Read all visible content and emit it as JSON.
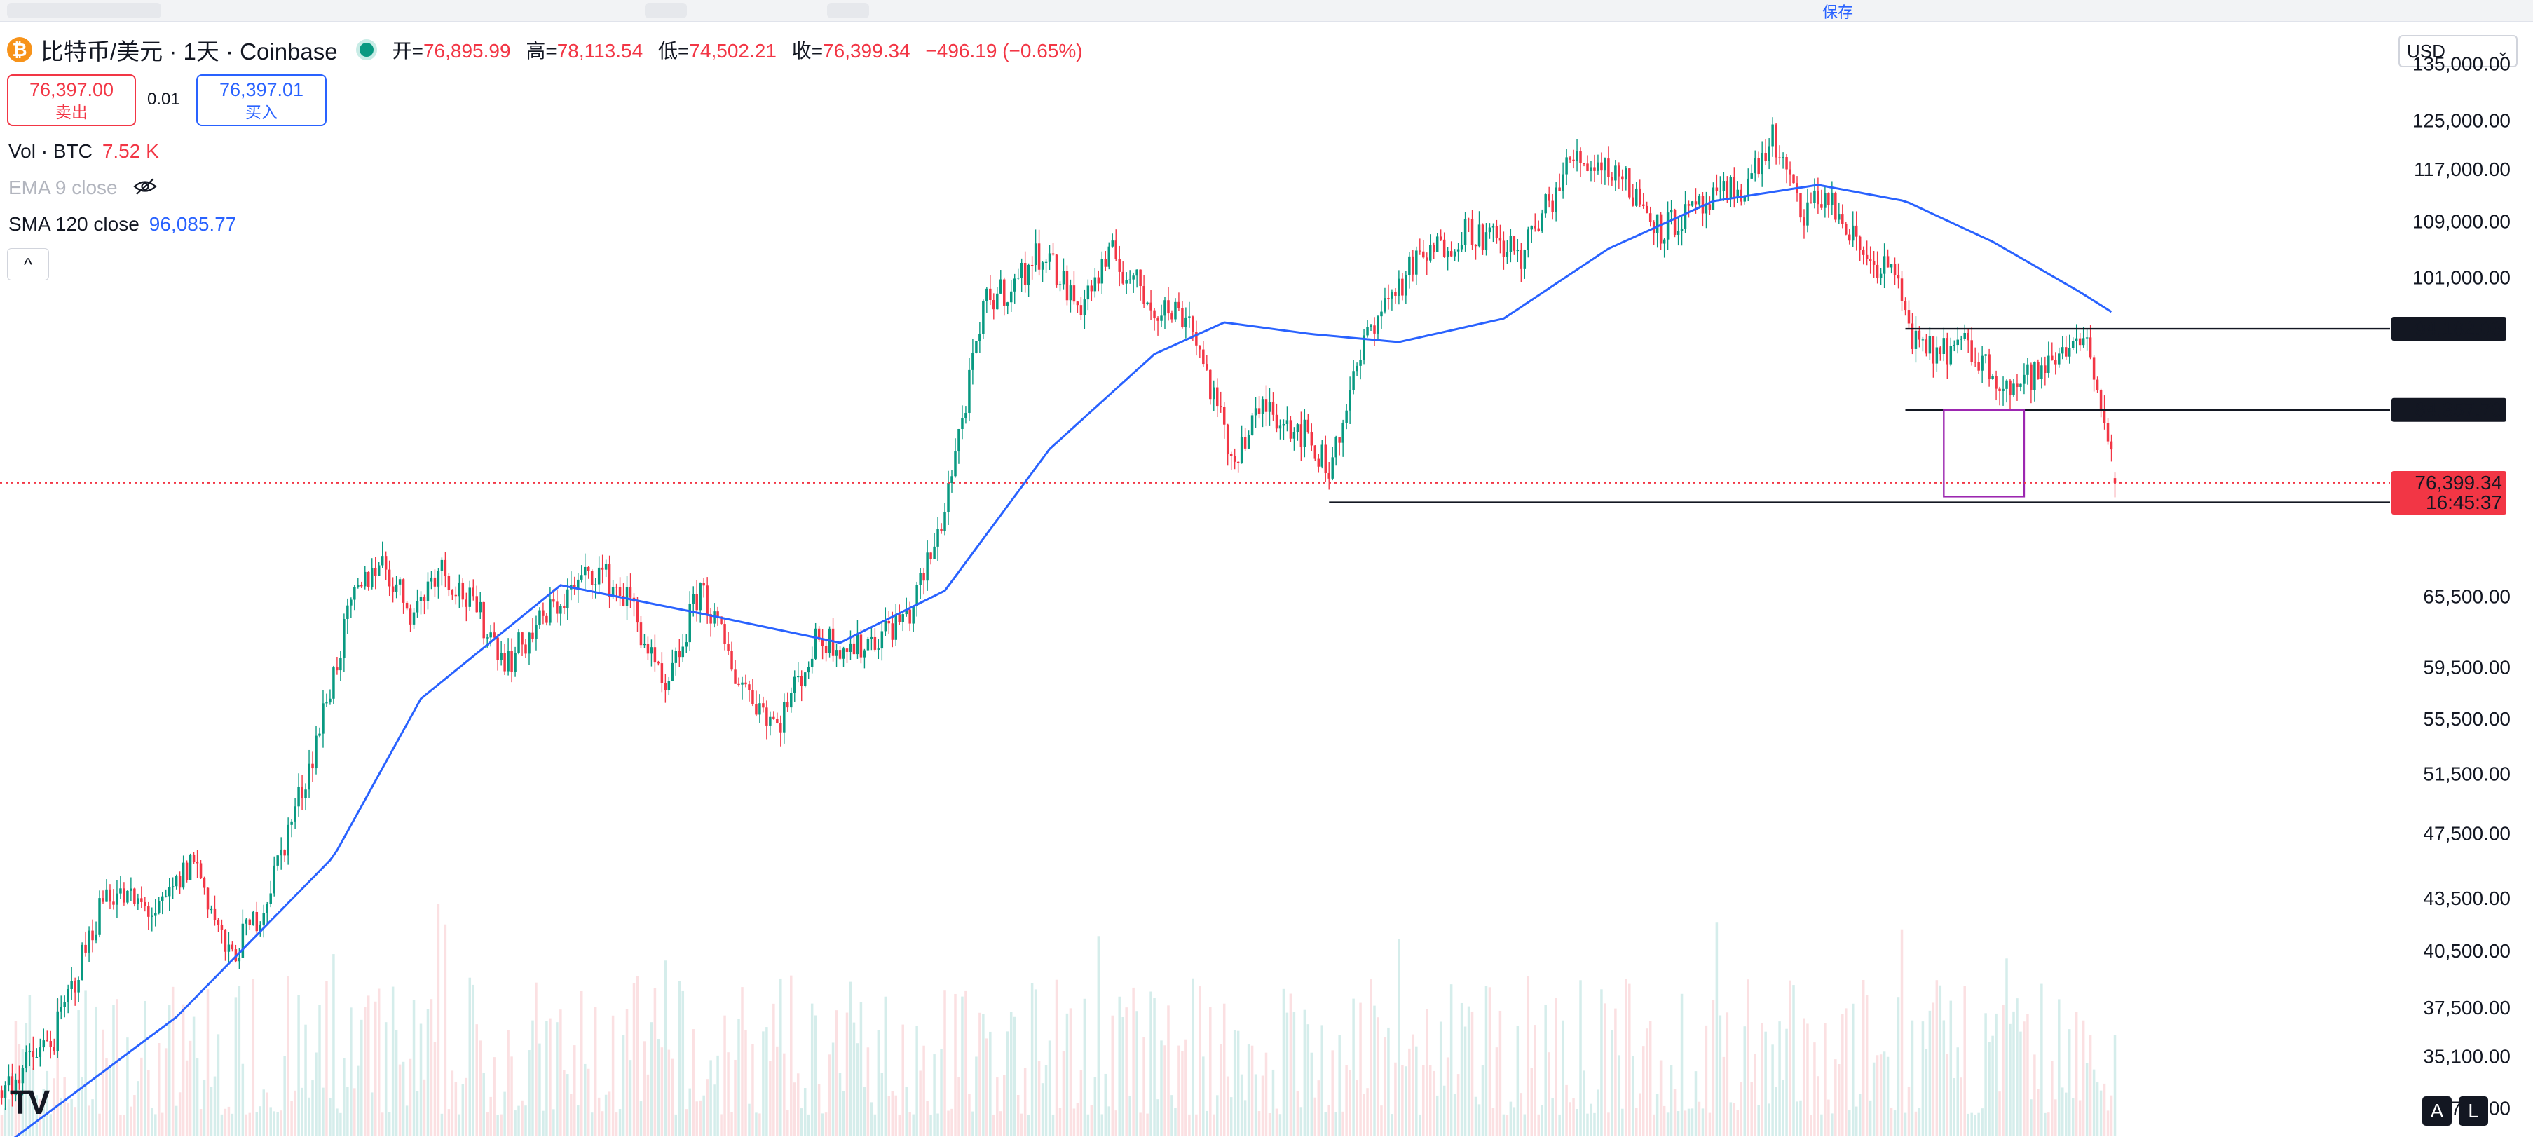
{
  "topbar": {
    "save_label": "保存"
  },
  "header": {
    "coin_icon": "bitcoin-icon",
    "coin_glyph": "₿",
    "symbol_title": "比特币/美元 · 1天 · Coinbase",
    "open_label": "开=",
    "open_value": "76,895.99",
    "high_label": "高=",
    "high_value": "78,113.54",
    "low_label": "低=",
    "low_value": "74,502.21",
    "close_label": "收=",
    "close_value": "76,399.34",
    "change_value": "−496.19 (−0.65%)"
  },
  "trade": {
    "sell_price": "76,397.00",
    "sell_label": "卖出",
    "spread": "0.01",
    "buy_price": "76,397.01",
    "buy_label": "买入"
  },
  "indicators": [
    {
      "name": "Vol · BTC",
      "value": "7.52 K"
    },
    {
      "name": "EMA 9 close",
      "value": ""
    },
    {
      "name": "SMA 120 close",
      "value": "96,085.77"
    }
  ],
  "collapse_glyph": "^",
  "currency": {
    "selected": "USD",
    "chevron": "⌄"
  },
  "logo_text": "TV",
  "bottom_buttons": {
    "auto": "A",
    "log": "L"
  },
  "colors": {
    "up": "#089981",
    "down": "#f23645",
    "sma": "#2962ff",
    "rect": "#9c27b0",
    "line": "#131722"
  },
  "chart_data": {
    "type": "candlestick",
    "symbol": "比特币/美元",
    "interval": "1天",
    "exchange": "Coinbase",
    "y_scale": "log",
    "ylim": [
      31500,
      139000
    ],
    "y_ticks": [
      135000,
      125000,
      117000,
      109000,
      101000,
      65500,
      59500,
      55500,
      51500,
      47500,
      43500,
      40500,
      37500,
      35100,
      32700
    ],
    "y_tick_labels": [
      "135,000.00",
      "125,000.00",
      "117,000.00",
      "109,000.00",
      "101,000.00",
      "65,500.00",
      "59,500.00",
      "55,500.00",
      "51,500.00",
      "47,500.00",
      "43,500.00",
      "40,500.00",
      "37,500.00",
      "35,100.00",
      "32,700.00"
    ],
    "close_path": [
      [
        0,
        33500
      ],
      [
        15,
        36000
      ],
      [
        30,
        44000
      ],
      [
        45,
        42500
      ],
      [
        55,
        46000
      ],
      [
        65,
        40000
      ],
      [
        75,
        43000
      ],
      [
        88,
        52000
      ],
      [
        100,
        64500
      ],
      [
        108,
        69000
      ],
      [
        118,
        64000
      ],
      [
        125,
        68500
      ],
      [
        135,
        64500
      ],
      [
        145,
        60000
      ],
      [
        158,
        64500
      ],
      [
        170,
        68000
      ],
      [
        180,
        65000
      ],
      [
        190,
        57000
      ],
      [
        200,
        66500
      ],
      [
        210,
        59000
      ],
      [
        222,
        55000
      ],
      [
        234,
        62000
      ],
      [
        245,
        61000
      ],
      [
        260,
        64000
      ],
      [
        268,
        71000
      ],
      [
        282,
        98000
      ],
      [
        290,
        100000
      ],
      [
        298,
        105000
      ],
      [
        308,
        97000
      ],
      [
        318,
        104000
      ],
      [
        330,
        97000
      ],
      [
        340,
        96000
      ],
      [
        352,
        79000
      ],
      [
        362,
        85000
      ],
      [
        372,
        82000
      ],
      [
        380,
        78000
      ],
      [
        392,
        95000
      ],
      [
        405,
        103000
      ],
      [
        420,
        108000
      ],
      [
        435,
        104000
      ],
      [
        450,
        119000
      ],
      [
        462,
        117000
      ],
      [
        475,
        108000
      ],
      [
        488,
        111000
      ],
      [
        500,
        115000
      ],
      [
        507,
        122000
      ],
      [
        515,
        110000
      ],
      [
        522,
        113000
      ],
      [
        533,
        104000
      ],
      [
        541,
        102000
      ],
      [
        549,
        91000
      ],
      [
        562,
        92000
      ],
      [
        575,
        87000
      ],
      [
        585,
        89000
      ],
      [
        595,
        94000
      ],
      [
        600,
        88000
      ],
      [
        605,
        77000
      ]
    ],
    "sma120_path": [
      [
        0,
        31000
      ],
      [
        50,
        37000
      ],
      [
        95,
        46000
      ],
      [
        120,
        57000
      ],
      [
        160,
        66500
      ],
      [
        200,
        64000
      ],
      [
        240,
        61500
      ],
      [
        270,
        66000
      ],
      [
        300,
        80000
      ],
      [
        330,
        91000
      ],
      [
        350,
        95000
      ],
      [
        375,
        93500
      ],
      [
        400,
        92500
      ],
      [
        430,
        95500
      ],
      [
        460,
        105000
      ],
      [
        490,
        112000
      ],
      [
        520,
        114500
      ],
      [
        545,
        112000
      ],
      [
        570,
        106000
      ],
      [
        595,
        99000
      ],
      [
        605,
        96085.77
      ]
    ],
    "volume_series": "Vol · BTC",
    "last_volume": "7.52 K",
    "horizontal_lines": [
      {
        "price": 94182.03,
        "label": "94,182.03",
        "from_x": 545
      },
      {
        "price": 84357.7,
        "label": "84,357.70",
        "from_x": 545
      },
      {
        "price": 74420.69,
        "label": "74,420.69",
        "from_x": 380
      }
    ],
    "rectangle": {
      "x0": 556,
      "x1": 579,
      "y_top": 84357.7,
      "y_bottom": 75000
    },
    "last_price": {
      "price": 76399.34,
      "label": "76,399.34",
      "countdown": "16:45:37"
    },
    "x_count": 606
  }
}
